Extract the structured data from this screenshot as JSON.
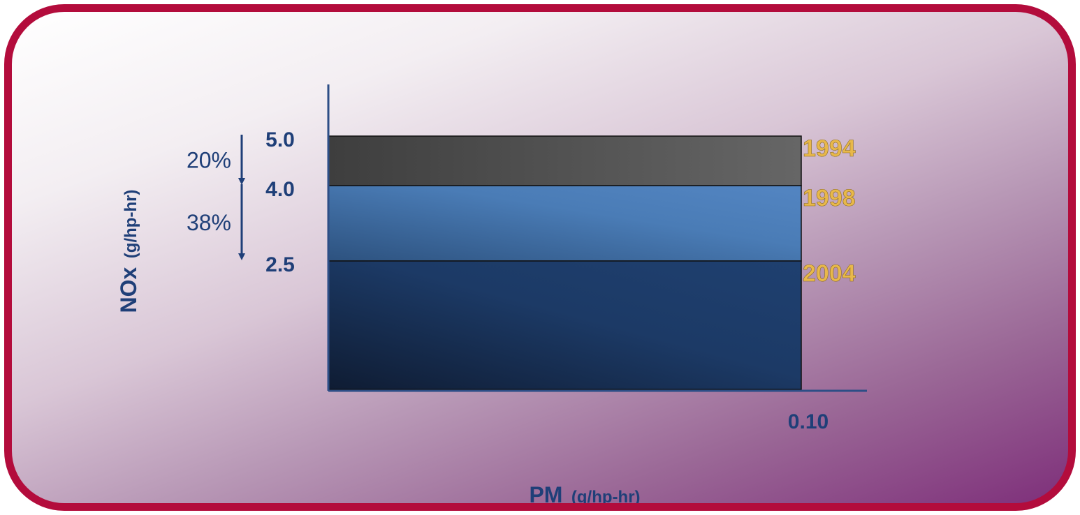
{
  "chart_data": {
    "type": "step-bar",
    "ylabel_main": "NOx",
    "ylabel_unit": "(g/hp-hr)",
    "xlabel_main": "PM",
    "xlabel_unit": "(g/hp-hr)",
    "x_tick": "0.10",
    "x_value": 0.1,
    "ylim": [
      0,
      5.0
    ],
    "series": [
      {
        "name": "1994",
        "nox": 5.0,
        "tick": "5.0",
        "color": "#4a4a4a"
      },
      {
        "name": "1998",
        "nox": 4.0,
        "tick": "4.0",
        "color": "#4577b0"
      },
      {
        "name": "2004",
        "nox": 2.5,
        "tick": "2.5",
        "color": "#1a3560"
      }
    ],
    "reductions": [
      {
        "label": "20%",
        "from": 5.0,
        "to": 4.0
      },
      {
        "label": "38%",
        "from": 4.0,
        "to": 2.5
      }
    ],
    "colors": {
      "axis": "#2d4e86",
      "year_label": "#e8b84a",
      "text": "#1f3f78",
      "border": "#b30c3c"
    }
  }
}
